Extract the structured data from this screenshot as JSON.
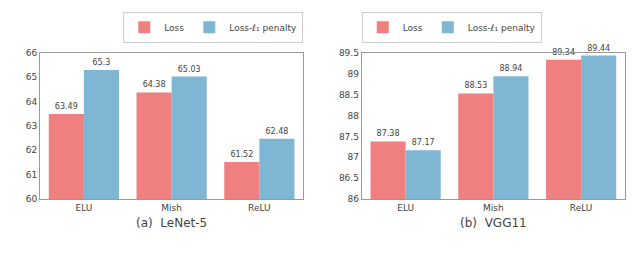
{
  "chart_data": [
    {
      "type": "bar",
      "xlabel": "(a)  LeNet-5",
      "categories": [
        "ELU",
        "Mish",
        "ReLU"
      ],
      "series": [
        {
          "name": "Loss",
          "color": "#F08080",
          "values": [
            63.49,
            64.38,
            61.52
          ]
        },
        {
          "name": "Loss-ℓ₁ penalty",
          "color": "#7EB6D4",
          "values": [
            65.3,
            65.03,
            62.48
          ]
        }
      ],
      "ylim": [
        60,
        66
      ],
      "yticks": [
        60,
        61,
        62,
        63,
        64,
        65,
        66
      ],
      "data_labels": true,
      "grid": false,
      "legend": "upper right"
    },
    {
      "type": "bar",
      "xlabel": "(b)  VGG11",
      "categories": [
        "ELU",
        "Mish",
        "ReLU"
      ],
      "series": [
        {
          "name": "Loss",
          "color": "#F08080",
          "values": [
            87.38,
            88.53,
            89.34
          ]
        },
        {
          "name": "Loss-ℓ₁ penalty",
          "color": "#7EB6D4",
          "values": [
            87.17,
            88.94,
            89.44
          ]
        }
      ],
      "ylim": [
        86,
        89.5
      ],
      "yticks": [
        86,
        86.5,
        87,
        87.5,
        88,
        88.5,
        89,
        89.5
      ],
      "data_labels": true,
      "grid": false,
      "legend": "upper left"
    }
  ]
}
